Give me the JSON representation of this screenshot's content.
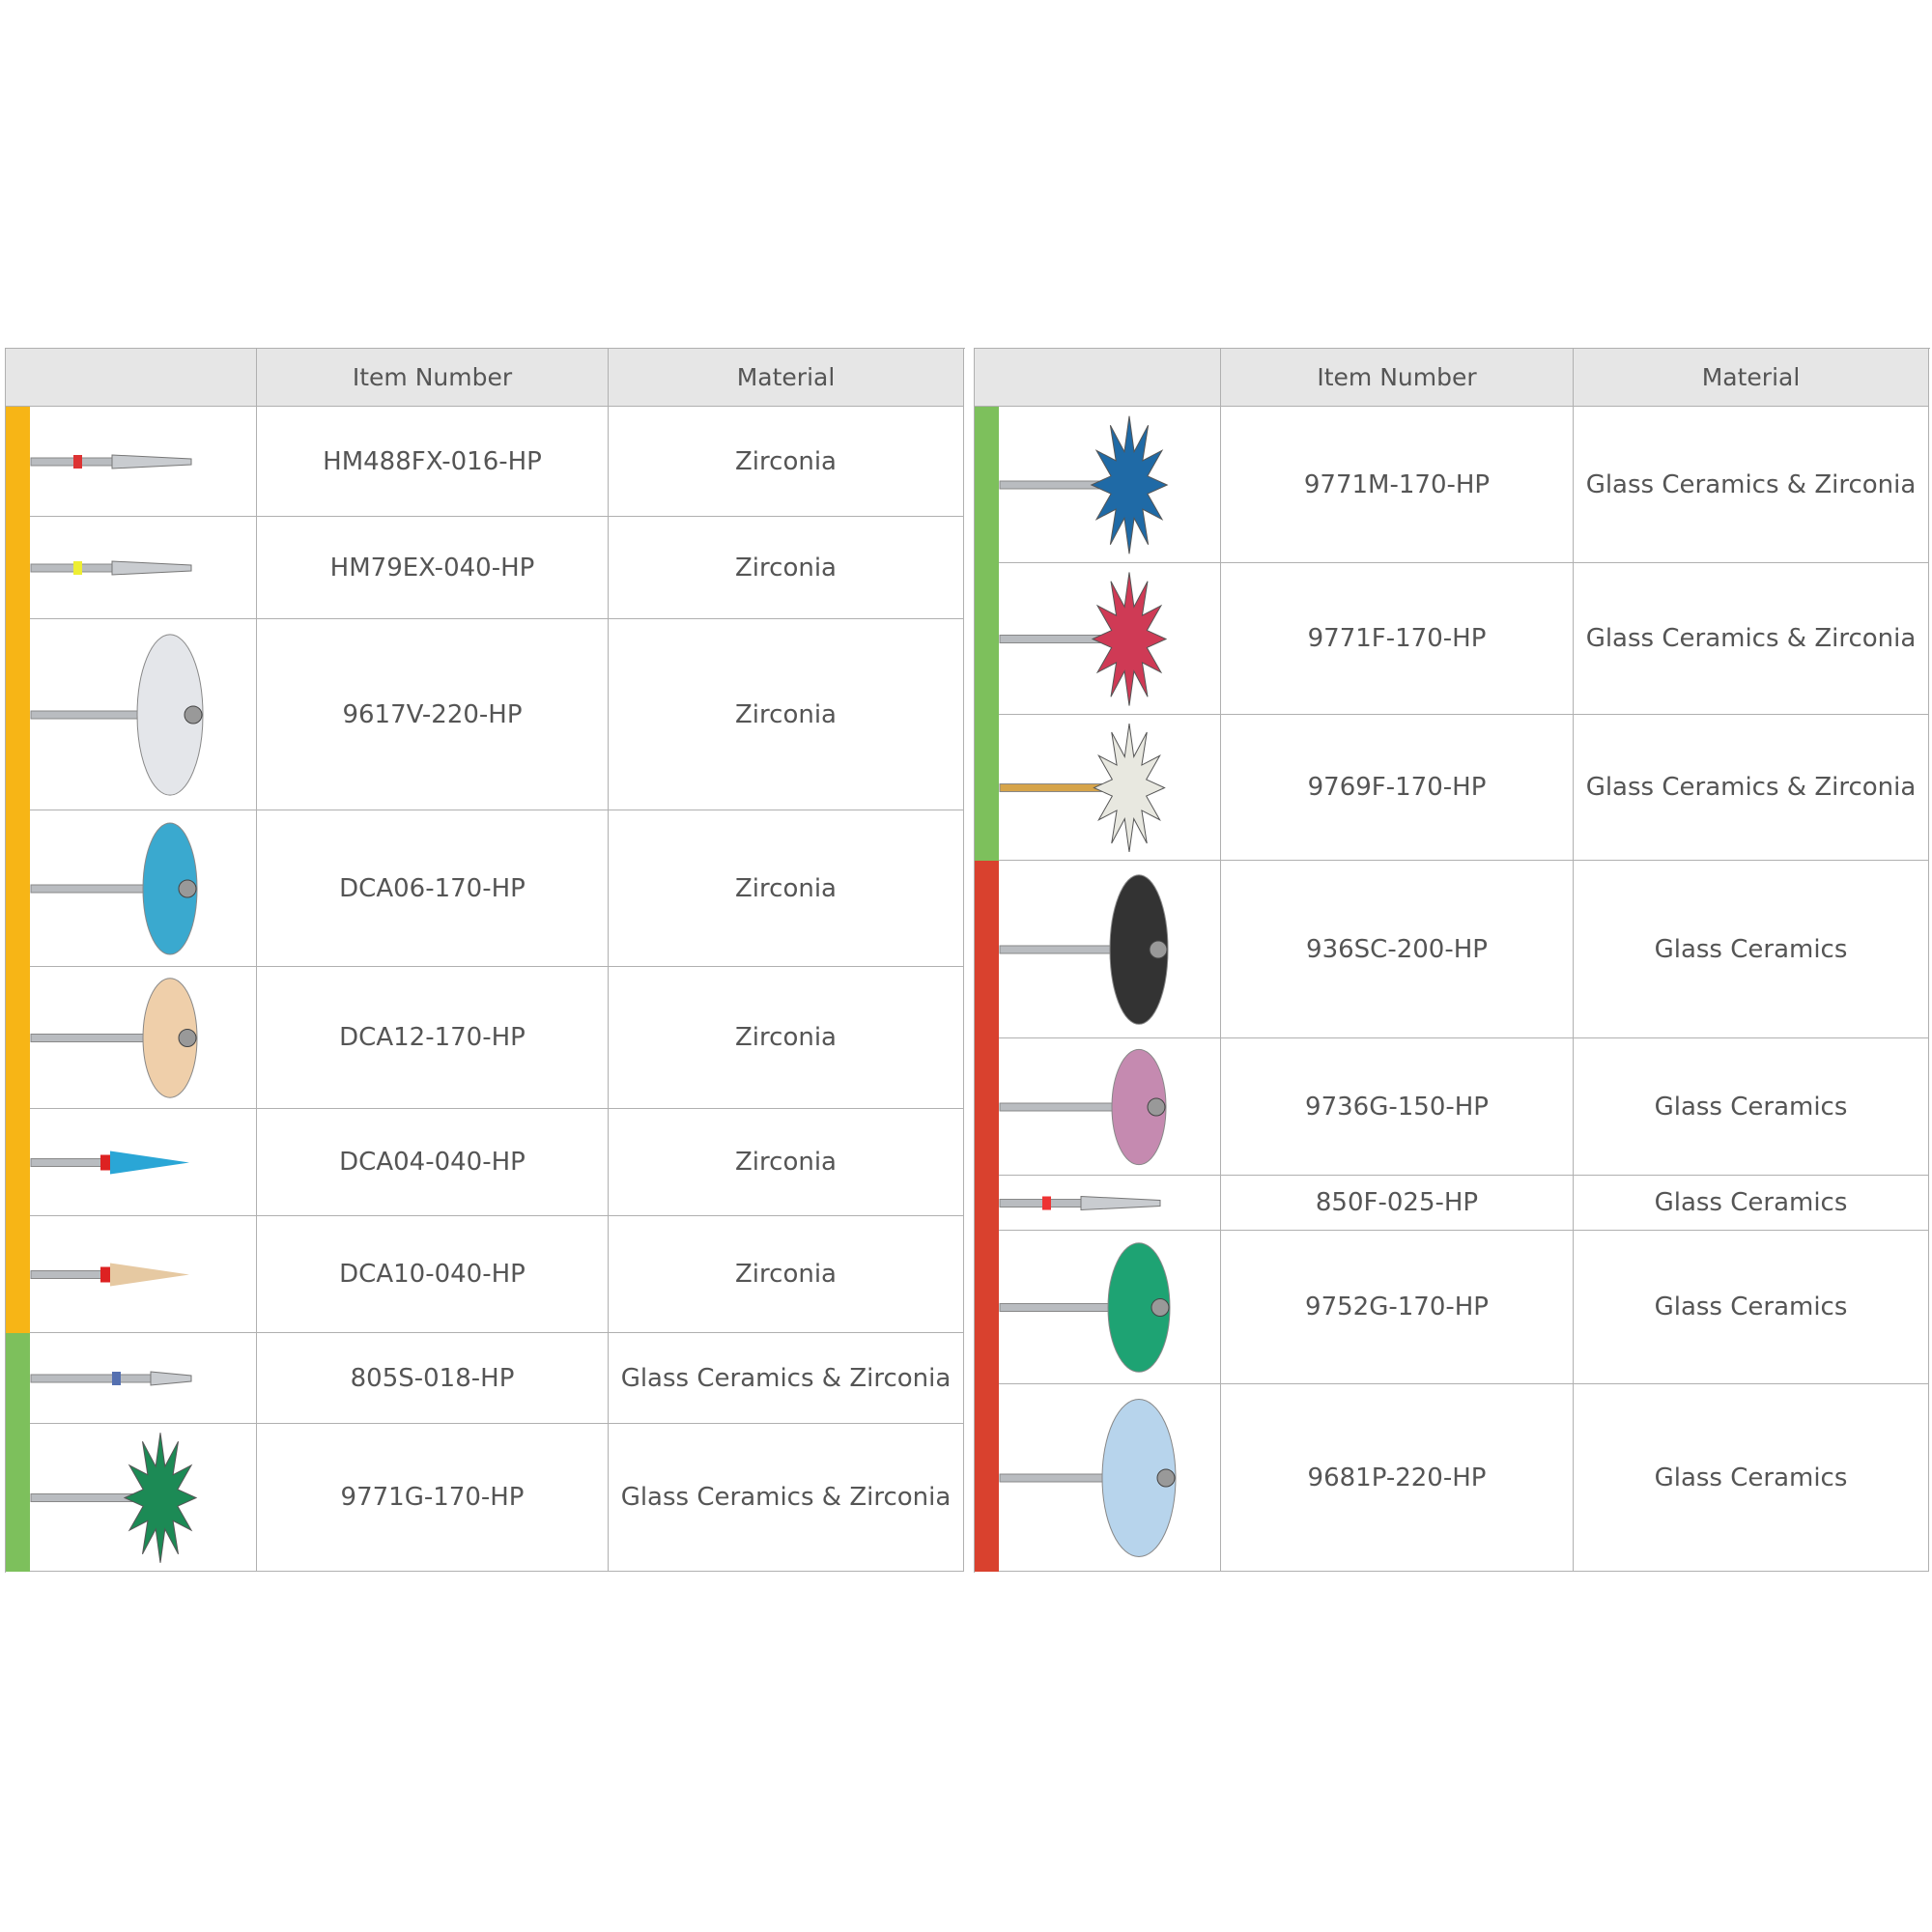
{
  "tables": [
    {
      "header": {
        "item_number": "Item Number",
        "material": "Material"
      },
      "rows": [
        [
          "HM488FX-016-HP",
          "Zirconia"
        ],
        [
          "HM79EX-040-HP",
          "Zirconia"
        ],
        [
          "9617V-220-HP",
          "Zirconia"
        ],
        [
          "DCA06-170-HP",
          "Zirconia"
        ],
        [
          "DCA12-170-HP",
          "Zirconia"
        ],
        [
          "DCA04-040-HP",
          "Zirconia"
        ],
        [
          "DCA10-040-HP",
          "Zirconia"
        ],
        [
          "805S-018-HP",
          "Glass Ceramics & Zirconia"
        ],
        [
          "9771G-170-HP",
          "Glass Ceramics & Zirconia"
        ]
      ]
    },
    {
      "header": {
        "item_number": "Item Number",
        "material": "Material"
      },
      "rows": [
        [
          "9771M-170-HP",
          "Glass Ceramics & Zirconia"
        ],
        [
          "9771F-170-HP",
          "Glass Ceramics & Zirconia"
        ],
        [
          "9769F-170-HP",
          "Glass Ceramics & Zirconia"
        ],
        [
          "936SC-200-HP",
          "Glass Ceramics"
        ],
        [
          "9736G-150-HP",
          "Glass Ceramics"
        ],
        [
          "850F-025-HP",
          "Glass Ceramics"
        ],
        [
          "9752G-170-HP",
          "Glass Ceramics"
        ],
        [
          "9681P-220-HP",
          "Glass Ceramics"
        ]
      ]
    }
  ]
}
